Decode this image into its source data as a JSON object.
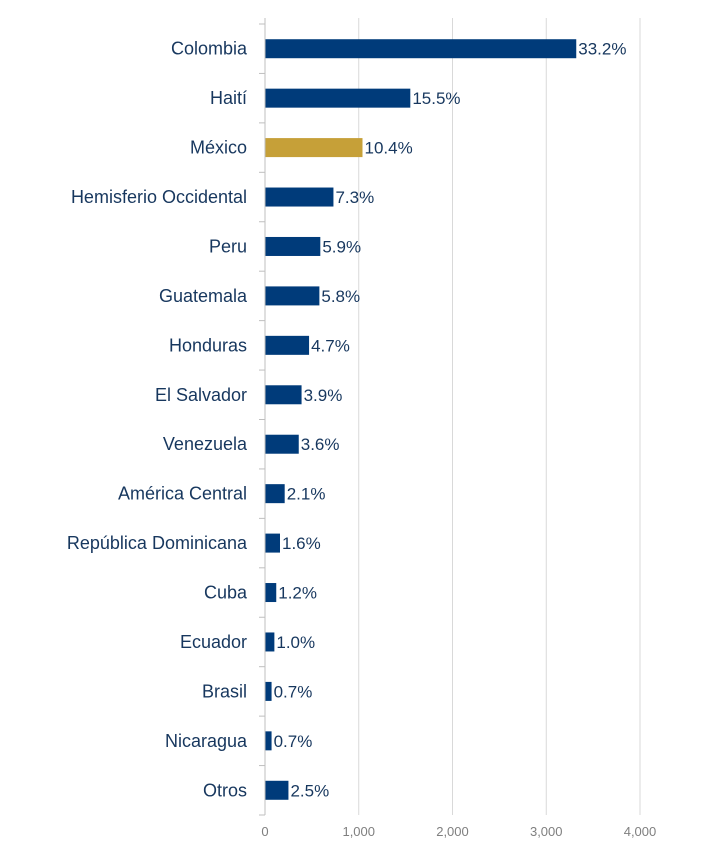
{
  "chart_data": {
    "type": "bar",
    "orientation": "horizontal",
    "categories": [
      "Colombia",
      "Haití",
      "México",
      "Hemisferio Occidental",
      "Peru",
      "Guatemala",
      "Honduras",
      "El Salvador",
      "Venezuela",
      "América Central",
      "República Dominicana",
      "Cuba",
      "Ecuador",
      "Brasil",
      "Nicaragua",
      "Otros"
    ],
    "values": [
      3320,
      1550,
      1040,
      730,
      590,
      580,
      470,
      390,
      360,
      210,
      160,
      120,
      100,
      70,
      70,
      250
    ],
    "data_labels": [
      "33.2%",
      "15.5%",
      "10.4%",
      "7.3%",
      "5.9%",
      "5.8%",
      "4.7%",
      "3.9%",
      "3.6%",
      "2.1%",
      "1.6%",
      "1.2%",
      "1.0%",
      "0.7%",
      "0.7%",
      "2.5%"
    ],
    "xlim": [
      0,
      4000
    ],
    "x_ticks": [
      0,
      1000,
      2000,
      3000,
      4000
    ],
    "x_tick_labels": [
      "0",
      "1,000",
      "2,000",
      "3,000",
      "4,000"
    ],
    "title": "",
    "xlabel": "",
    "ylabel": "",
    "grid": true,
    "legend": "none",
    "colors": {
      "default": "#003b7a",
      "highlight": "#c6a038",
      "highlight_category": "México",
      "label_text": "#17375e",
      "tick_text": "#7f7f7f",
      "gridline": "#d9d9d9"
    }
  }
}
